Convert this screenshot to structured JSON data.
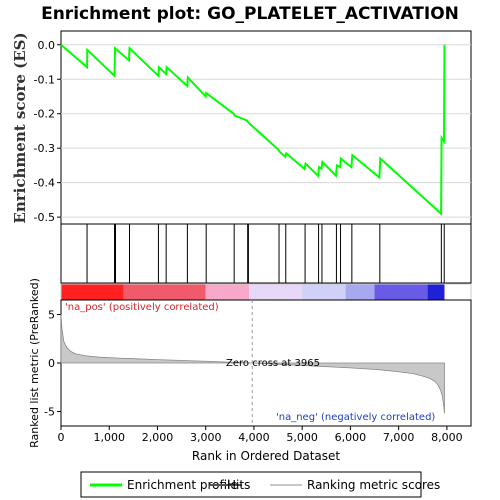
{
  "chart_data": [
    {
      "type": "line",
      "panel": "enrichment",
      "title": "Enrichment plot: GO_PLATELET_ACTIVATION",
      "ylabel": "Enrichment score (ES)",
      "xlim": [
        0,
        8000
      ],
      "ylim": [
        -0.52,
        0.04
      ],
      "yticks": [
        "0.0",
        "-0.1",
        "-0.2",
        "-0.3",
        "-0.4",
        "-0.5"
      ],
      "yticks_values": [
        0.0,
        -0.1,
        -0.2,
        -0.3,
        -0.4,
        -0.5
      ],
      "grid": true,
      "color": "#00ff00",
      "series": [
        {
          "name": "Enrichment profile",
          "x": [
            0,
            540,
            545,
            1110,
            1120,
            1410,
            1420,
            2020,
            2030,
            2180,
            2190,
            2620,
            2630,
            3000,
            3010,
            3580,
            3600,
            3860,
            3880,
            4510,
            4530,
            4650,
            4670,
            5050,
            5070,
            5330,
            5350,
            5400,
            5420,
            5700,
            5720,
            5790,
            5800,
            6020,
            6040,
            6600,
            6620,
            7880,
            7890,
            7940,
            7950
          ],
          "y": [
            0.0,
            -0.065,
            -0.015,
            -0.09,
            -0.01,
            -0.045,
            -0.01,
            -0.09,
            -0.065,
            -0.085,
            -0.065,
            -0.12,
            -0.095,
            -0.15,
            -0.14,
            -0.2,
            -0.205,
            -0.22,
            -0.225,
            -0.305,
            -0.31,
            -0.325,
            -0.315,
            -0.36,
            -0.345,
            -0.38,
            -0.355,
            -0.36,
            -0.34,
            -0.38,
            -0.35,
            -0.355,
            -0.33,
            -0.355,
            -0.32,
            -0.385,
            -0.33,
            -0.49,
            -0.27,
            -0.28,
            0.0
          ]
        }
      ]
    },
    {
      "type": "scatter",
      "panel": "hits",
      "name": "Hits",
      "color": "#000000",
      "x": [
        540,
        1110,
        1130,
        1420,
        2020,
        2180,
        2620,
        3010,
        3590,
        3870,
        3885,
        4520,
        4660,
        5060,
        5340,
        5410,
        5710,
        5795,
        6030,
        6610,
        7885,
        7945
      ]
    },
    {
      "type": "heatmap",
      "panel": "ranking-colorbar",
      "colors": [
        "#ff2020",
        "#f05a6a",
        "#f8a8c8",
        "#e8d8f8",
        "#d0d0f8",
        "#a8a8f0",
        "#6a5ae8",
        "#2020d8"
      ],
      "stops": [
        0,
        1300,
        3000,
        3900,
        5000,
        5900,
        6500,
        7600,
        7950
      ]
    },
    {
      "type": "area",
      "panel": "ranked-metric",
      "name": "Ranking metric scores",
      "ylabel": "Ranked list metric (PreRanked)",
      "xlabel": "Rank in Ordered Dataset",
      "xlim": [
        0,
        8500
      ],
      "xticks": [
        "0",
        "1,000",
        "2,000",
        "3,000",
        "4,000",
        "5,000",
        "6,000",
        "7,000",
        "8,000"
      ],
      "xticks_values": [
        0,
        1000,
        2000,
        3000,
        4000,
        5000,
        6000,
        7000,
        8000
      ],
      "ylim": [
        -6.5,
        6.5
      ],
      "yticks": [
        "5",
        "0",
        "-5"
      ],
      "yticks_values": [
        5,
        0,
        -5
      ],
      "color": "#c8c8c8",
      "x": [
        0,
        20,
        60,
        120,
        200,
        300,
        500,
        800,
        1200,
        2000,
        3000,
        3965,
        5000,
        6000,
        6600,
        7000,
        7300,
        7500,
        7650,
        7750,
        7820,
        7870,
        7900,
        7930,
        7950
      ],
      "y": [
        5.0,
        3.5,
        2.2,
        1.6,
        1.2,
        0.95,
        0.75,
        0.6,
        0.5,
        0.35,
        0.18,
        0.0,
        -0.25,
        -0.5,
        -0.7,
        -0.9,
        -1.1,
        -1.35,
        -1.6,
        -1.9,
        -2.3,
        -2.8,
        -3.3,
        -4.2,
        -5.2
      ],
      "zero_cross": 3965,
      "annotations": {
        "pos": "'na_pos' (positively correlated)",
        "neg": "'na_neg' (negatively correlated)",
        "zero": "Zero cross at 3965"
      }
    }
  ],
  "legend": {
    "items": [
      {
        "label": "Enrichment profile",
        "color": "#00ff00"
      },
      {
        "label": "Hits",
        "color": "#555555"
      },
      {
        "label": "Ranking metric scores",
        "color": "#c8c8c8"
      }
    ]
  }
}
